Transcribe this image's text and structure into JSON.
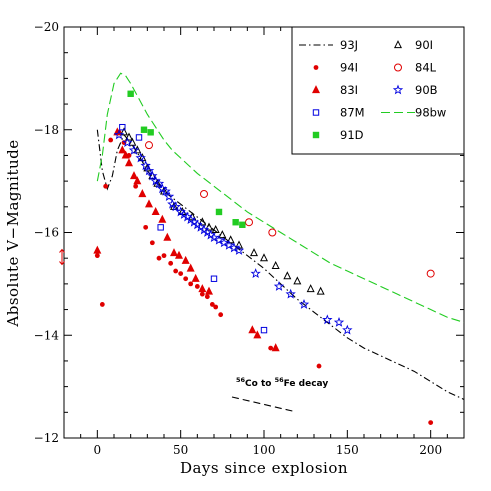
{
  "chart_data": {
    "type": "scatter",
    "xlabel": "Days since explosion",
    "ylabel": "Absolute V−Magnitude",
    "xlim": [
      -20,
      220
    ],
    "ylim": [
      -12,
      -20
    ],
    "x_ticks": [
      0,
      50,
      100,
      150,
      200
    ],
    "y_ticks": [
      -20,
      -18,
      -16,
      -14,
      -12
    ],
    "grid": false,
    "legend_placement": "top-right",
    "annotation": {
      "text_parts": [
        "56",
        "Co to ",
        "56",
        "Fe decay"
      ],
      "line": [
        [
          70,
          -12.5
        ],
        [
          120,
          -12.5
        ]
      ]
    },
    "series": [
      {
        "name": "93J",
        "kind": "line",
        "color": "#000000",
        "style": "dashdot",
        "points": [
          [
            0,
            -18
          ],
          [
            3,
            -17.2
          ],
          [
            6,
            -16.85
          ],
          [
            9,
            -17.1
          ],
          [
            12,
            -17.6
          ],
          [
            16,
            -17.9
          ],
          [
            20,
            -17.75
          ],
          [
            25,
            -17.5
          ],
          [
            30,
            -17.2
          ],
          [
            40,
            -16.8
          ],
          [
            50,
            -16.55
          ],
          [
            60,
            -16.3
          ],
          [
            70,
            -16.05
          ],
          [
            80,
            -15.8
          ],
          [
            90,
            -15.55
          ],
          [
            100,
            -15.3
          ],
          [
            110,
            -15.0
          ],
          [
            120,
            -14.7
          ],
          [
            130,
            -14.45
          ],
          [
            140,
            -14.2
          ],
          [
            150,
            -13.95
          ],
          [
            160,
            -13.75
          ],
          [
            170,
            -13.6
          ],
          [
            180,
            -13.45
          ],
          [
            190,
            -13.3
          ],
          [
            200,
            -13.1
          ],
          [
            210,
            -12.9
          ],
          [
            220,
            -12.75
          ]
        ]
      },
      {
        "name": "90I",
        "kind": "marker",
        "marker": "triangle-open",
        "color": "#000000",
        "points": [
          [
            16,
            -17.95
          ],
          [
            19,
            -17.85
          ],
          [
            21,
            -17.75
          ],
          [
            24,
            -17.6
          ],
          [
            27,
            -17.45
          ],
          [
            30,
            -17.25
          ],
          [
            33,
            -17.1
          ],
          [
            36,
            -16.95
          ],
          [
            40,
            -16.8
          ],
          [
            46,
            -16.5
          ],
          [
            51,
            -16.4
          ],
          [
            57,
            -16.3
          ],
          [
            63,
            -16.2
          ],
          [
            67,
            -16.1
          ],
          [
            71,
            -16.05
          ],
          [
            75,
            -15.95
          ],
          [
            80,
            -15.85
          ],
          [
            85,
            -15.75
          ],
          [
            94,
            -15.6
          ],
          [
            100,
            -15.5
          ],
          [
            107,
            -15.35
          ],
          [
            114,
            -15.15
          ],
          [
            120,
            -15.05
          ],
          [
            128,
            -14.9
          ],
          [
            134,
            -14.85
          ]
        ]
      },
      {
        "name": "94I",
        "kind": "marker",
        "marker": "circle-filled",
        "color": "#e00000",
        "points": [
          [
            0,
            -15.55
          ],
          [
            3,
            -14.6
          ],
          [
            5,
            -16.9
          ],
          [
            8,
            -17.8
          ],
          [
            13,
            -17.95
          ],
          [
            16,
            -17.75
          ],
          [
            19,
            -17.5
          ],
          [
            23,
            -16.9
          ],
          [
            29,
            -16.1
          ],
          [
            33,
            -15.8
          ],
          [
            37,
            -15.5
          ],
          [
            40,
            -15.55
          ],
          [
            44,
            -15.4
          ],
          [
            47,
            -15.25
          ],
          [
            50,
            -15.2
          ],
          [
            53,
            -15.1
          ],
          [
            56,
            -15.0
          ],
          [
            60,
            -14.95
          ],
          [
            63,
            -14.8
          ],
          [
            66,
            -14.75
          ],
          [
            69,
            -14.6
          ],
          [
            71,
            -14.55
          ],
          [
            74,
            -14.4
          ],
          [
            104,
            -13.75
          ],
          [
            133,
            -13.4
          ],
          [
            200,
            -12.3
          ]
        ]
      },
      {
        "name": "84L",
        "kind": "marker",
        "marker": "circle-open",
        "color": "#e00000",
        "points": [
          [
            31,
            -17.7
          ],
          [
            64,
            -16.75
          ],
          [
            91,
            -16.2
          ],
          [
            105,
            -16.0
          ],
          [
            200,
            -15.2
          ]
        ]
      },
      {
        "name": "83I",
        "kind": "marker",
        "marker": "triangle-filled",
        "color": "#e00000",
        "points": [
          [
            0,
            -15.65
          ],
          [
            12,
            -17.95
          ],
          [
            15,
            -17.6
          ],
          [
            17,
            -17.5
          ],
          [
            19,
            -17.35
          ],
          [
            22,
            -17.1
          ],
          [
            24,
            -17.0
          ],
          [
            27,
            -16.75
          ],
          [
            31,
            -16.55
          ],
          [
            35,
            -16.4
          ],
          [
            39,
            -16.25
          ],
          [
            42,
            -15.9
          ],
          [
            46,
            -15.6
          ],
          [
            49,
            -15.55
          ],
          [
            53,
            -15.45
          ],
          [
            56,
            -15.3
          ],
          [
            59,
            -15.1
          ],
          [
            63,
            -14.9
          ],
          [
            67,
            -14.85
          ],
          [
            93,
            -14.1
          ],
          [
            96,
            -14.0
          ],
          [
            107,
            -13.75
          ]
        ]
      },
      {
        "name": "90B",
        "kind": "marker",
        "marker": "star-open",
        "color": "#0000e0",
        "points": [
          [
            13,
            -17.9
          ],
          [
            18,
            -17.75
          ],
          [
            22,
            -17.6
          ],
          [
            26,
            -17.45
          ],
          [
            29,
            -17.3
          ],
          [
            31,
            -17.2
          ],
          [
            33,
            -17.1
          ],
          [
            35,
            -17.0
          ],
          [
            37,
            -16.95
          ],
          [
            39,
            -16.85
          ],
          [
            41,
            -16.8
          ],
          [
            43,
            -16.7
          ],
          [
            45,
            -16.55
          ],
          [
            47,
            -16.5
          ],
          [
            50,
            -16.4
          ],
          [
            52,
            -16.35
          ],
          [
            54,
            -16.3
          ],
          [
            56,
            -16.25
          ],
          [
            58,
            -16.2
          ],
          [
            60,
            -16.15
          ],
          [
            62,
            -16.1
          ],
          [
            64,
            -16.05
          ],
          [
            66,
            -16.0
          ],
          [
            68,
            -15.95
          ],
          [
            70,
            -15.9
          ],
          [
            73,
            -15.85
          ],
          [
            76,
            -15.8
          ],
          [
            79,
            -15.75
          ],
          [
            82,
            -15.7
          ],
          [
            85,
            -15.65
          ],
          [
            95,
            -15.2
          ],
          [
            109,
            -14.95
          ],
          [
            116,
            -14.8
          ],
          [
            124,
            -14.6
          ],
          [
            138,
            -14.3
          ],
          [
            145,
            -14.25
          ],
          [
            150,
            -14.1
          ]
        ]
      },
      {
        "name": "87M",
        "kind": "marker",
        "marker": "square-open",
        "color": "#0000e0",
        "points": [
          [
            15,
            -18.05
          ],
          [
            25,
            -17.85
          ],
          [
            38,
            -16.1
          ],
          [
            70,
            -15.1
          ],
          [
            100,
            -14.1
          ]
        ]
      },
      {
        "name": "98bw",
        "kind": "line",
        "color": "#22cc22",
        "style": "dashed",
        "points": [
          [
            0,
            -17.0
          ],
          [
            3,
            -17.5
          ],
          [
            6,
            -18.3
          ],
          [
            10,
            -18.9
          ],
          [
            14,
            -19.1
          ],
          [
            17,
            -19.05
          ],
          [
            20,
            -18.9
          ],
          [
            25,
            -18.6
          ],
          [
            30,
            -18.3
          ],
          [
            35,
            -18.05
          ],
          [
            40,
            -17.8
          ],
          [
            45,
            -17.6
          ],
          [
            50,
            -17.45
          ],
          [
            60,
            -17.15
          ],
          [
            70,
            -16.9
          ],
          [
            80,
            -16.65
          ],
          [
            90,
            -16.4
          ],
          [
            100,
            -16.2
          ],
          [
            110,
            -16.0
          ],
          [
            120,
            -15.8
          ],
          [
            130,
            -15.6
          ],
          [
            140,
            -15.4
          ],
          [
            150,
            -15.25
          ],
          [
            160,
            -15.1
          ],
          [
            170,
            -14.95
          ],
          [
            180,
            -14.8
          ],
          [
            190,
            -14.65
          ],
          [
            200,
            -14.5
          ],
          [
            210,
            -14.35
          ],
          [
            220,
            -14.25
          ]
        ]
      },
      {
        "name": "91D",
        "kind": "marker",
        "marker": "square-filled",
        "color": "#22cc22",
        "points": [
          [
            20,
            -18.7
          ],
          [
            28,
            -18.0
          ],
          [
            32,
            -17.95
          ],
          [
            73,
            -16.4
          ],
          [
            83,
            -16.2
          ],
          [
            87,
            -16.15
          ]
        ]
      }
    ]
  }
}
